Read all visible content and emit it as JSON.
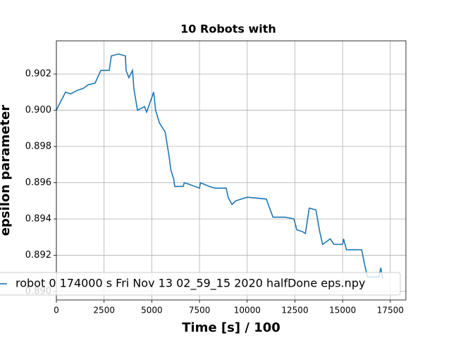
{
  "chart_data": {
    "type": "line",
    "title": "10 Robots with",
    "x_label": "Time [s] / 100",
    "y_label": "epsilon parameter",
    "x": [
      0,
      185,
      480,
      740,
      1100,
      1400,
      1660,
      2030,
      2330,
      2770,
      2880,
      3250,
      3620,
      3650,
      3800,
      3990,
      4060,
      4250,
      4620,
      4730,
      5100,
      5200,
      5400,
      5700,
      5900,
      6000,
      6150,
      6200,
      6650,
      6700,
      7000,
      7500,
      7550,
      8000,
      8300,
      8900,
      9000,
      9200,
      9400,
      9700,
      10000,
      11000,
      11350,
      12000,
      12450,
      12600,
      12900,
      13050,
      13250,
      13600,
      13800,
      13950,
      14350,
      14550,
      15000,
      15050,
      15200,
      16000,
      16150,
      16300,
      16900,
      17000,
      17100
    ],
    "series": [
      {
        "name": "robot 0 174000 s Fri Nov 13 02_59_15 2020 halfDone eps.npy",
        "color": "#1f77b4",
        "values": [
          0.9,
          0.9004,
          0.901,
          0.9009,
          0.9011,
          0.9012,
          0.9014,
          0.9015,
          0.9022,
          0.9022,
          0.903,
          0.9031,
          0.903,
          0.9022,
          0.9018,
          0.9022,
          0.9012,
          0.9,
          0.9002,
          0.8999,
          0.901,
          0.9,
          0.8993,
          0.8988,
          0.8975,
          0.8967,
          0.8962,
          0.8958,
          0.8958,
          0.896,
          0.8959,
          0.8957,
          0.896,
          0.8958,
          0.8957,
          0.8957,
          0.8952,
          0.8948,
          0.895,
          0.8951,
          0.8952,
          0.8951,
          0.8941,
          0.8941,
          0.894,
          0.8934,
          0.8933,
          0.8932,
          0.8946,
          0.8945,
          0.8933,
          0.8926,
          0.8929,
          0.8926,
          0.8926,
          0.8929,
          0.8923,
          0.8923,
          0.8915,
          0.8908,
          0.8908,
          0.8913,
          0.8907
        ]
      }
    ],
    "xlim": [
      0,
      18316
    ],
    "ylim": [
      0.88953,
      0.90383
    ],
    "xticks": [
      0,
      2500,
      5000,
      7500,
      10000,
      12500,
      15000,
      17500
    ],
    "yticks": [
      {
        "value": 0.89,
        "label": "0.890"
      },
      0.892,
      0.894,
      0.896,
      0.898,
      {
        "value": 0.9,
        "label": "0.900"
      },
      0.902
    ],
    "grid": true,
    "legend": "lower left"
  }
}
